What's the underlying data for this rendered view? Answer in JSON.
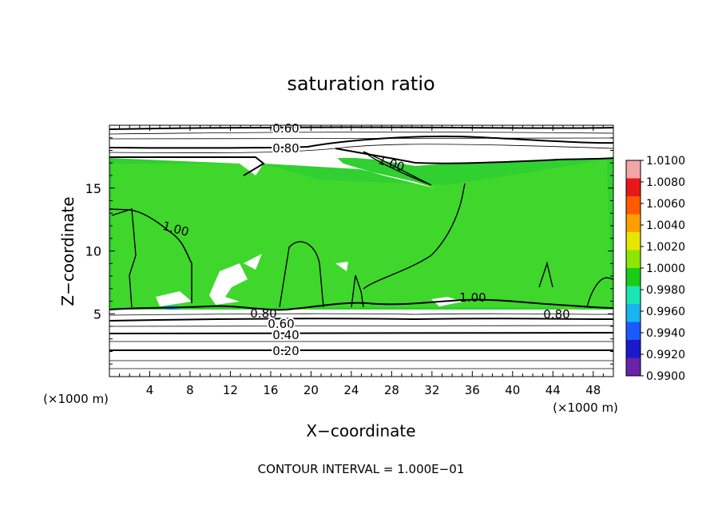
{
  "chart_data": {
    "type": "heatmap",
    "title": "saturation ratio",
    "xlabel": "X−coordinate",
    "ylabel": "Z−coordinate",
    "x_unit_left": "(×1000 m)",
    "x_unit_right": "(×1000 m)",
    "x_ticks": [
      "4",
      "8",
      "12",
      "16",
      "20",
      "24",
      "28",
      "32",
      "36",
      "40",
      "44",
      "48"
    ],
    "y_ticks": [
      "5",
      "10",
      "15"
    ],
    "xlim": [
      0,
      50
    ],
    "ylim": [
      0,
      20
    ],
    "contour_labels": [
      "0.60",
      "0.80",
      "1.00",
      "1.00",
      "0.80",
      "0.60",
      "0.40",
      "0.20",
      "1.00",
      "0.80"
    ],
    "colorbar_ticks": [
      "1.0100",
      "1.0080",
      "1.0060",
      "1.0040",
      "1.0020",
      "1.0000",
      "0.9980",
      "0.9960",
      "0.9940",
      "0.9920",
      "0.9900"
    ],
    "colorbar_colors": [
      "#f3a6a8",
      "#e81818",
      "#ff5a00",
      "#ff9e00",
      "#e6e600",
      "#8ce600",
      "#18cc18",
      "#19e6b4",
      "#1ab4f0",
      "#1a5aff",
      "#1a1acc",
      "#6a22a8"
    ],
    "footnote": "CONTOUR INTERVAL = 1.000E−01"
  }
}
